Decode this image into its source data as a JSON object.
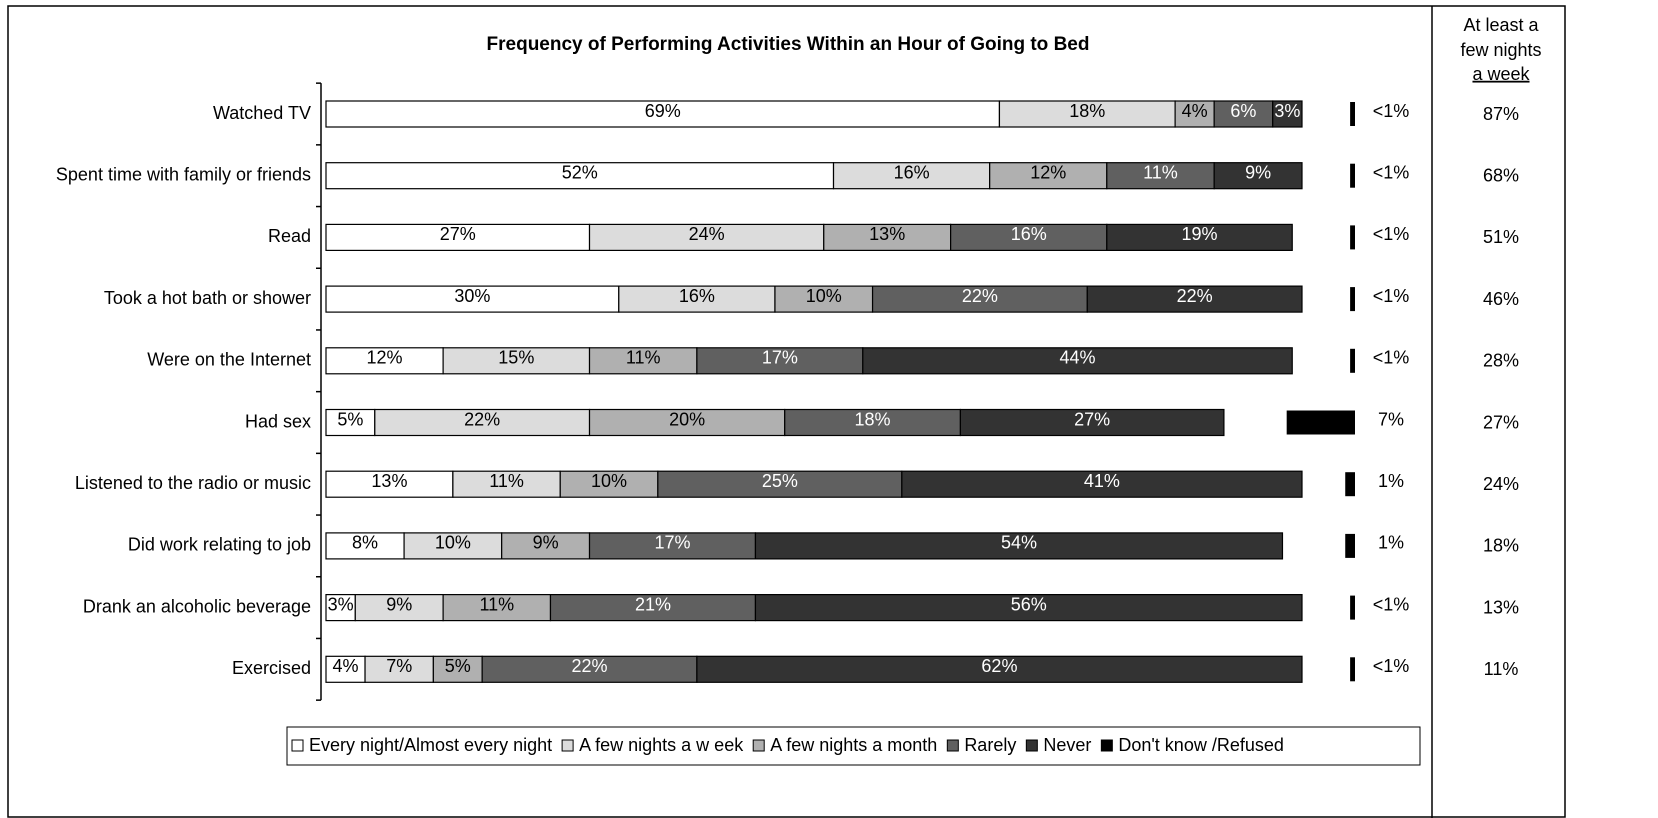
{
  "chart_data": {
    "type": "stacked-bar-horizontal",
    "title": "Frequency of Performing Activities Within an Hour of Going to Bed",
    "categories": [
      "Watched TV",
      "Spent time with family or friends",
      "Read",
      "Took a hot bath or shower",
      "Were on the Internet",
      "Had sex",
      "Listened to the radio or music",
      "Did work relating to job",
      "Drank an alcoholic beverage",
      "Exercised"
    ],
    "xlim": [
      0,
      100
    ],
    "series": [
      {
        "name": "Every night/Almost every night",
        "color": "#ffffff",
        "values": [
          69,
          52,
          27,
          30,
          12,
          5,
          13,
          8,
          3,
          4
        ],
        "value_labels": [
          "69%",
          "52%",
          "27%",
          "30%",
          "12%",
          "5%",
          "13%",
          "8%",
          "3%",
          "4%"
        ]
      },
      {
        "name": "A few  nights a w eek",
        "color": "#dcdcdc",
        "values": [
          18,
          16,
          24,
          16,
          15,
          22,
          11,
          10,
          9,
          7
        ],
        "value_labels": [
          "18%",
          "16%",
          "24%",
          "16%",
          "15%",
          "22%",
          "11%",
          "10%",
          "9%",
          "7%"
        ]
      },
      {
        "name": "A few  nights a month",
        "color": "#b0b0b0",
        "values": [
          4,
          12,
          13,
          10,
          11,
          20,
          10,
          9,
          11,
          5
        ],
        "value_labels": [
          "4%",
          "12%",
          "13%",
          "10%",
          "11%",
          "20%",
          "10%",
          "9%",
          "11%",
          "5%"
        ]
      },
      {
        "name": "Rarely",
        "color": "#606060",
        "values": [
          6,
          11,
          16,
          22,
          17,
          18,
          25,
          17,
          21,
          22
        ],
        "value_labels": [
          "6%",
          "11%",
          "16%",
          "22%",
          "17%",
          "18%",
          "25%",
          "17%",
          "21%",
          "22%"
        ]
      },
      {
        "name": "Never",
        "color": "#333333",
        "values": [
          3,
          9,
          19,
          22,
          44,
          27,
          41,
          54,
          56,
          62
        ],
        "value_labels": [
          "3%",
          "9%",
          "19%",
          "22%",
          "44%",
          "27%",
          "41%",
          "54%",
          "56%",
          "62%"
        ]
      },
      {
        "name": "Don't know /Refused",
        "color": "#000000",
        "values": [
          0.5,
          0.5,
          0.5,
          0.5,
          0.5,
          7,
          1,
          1,
          0.5,
          0.5
        ],
        "value_labels": [
          "<1%",
          "<1%",
          "<1%",
          "<1%",
          "<1%",
          "7%",
          "1%",
          "1%",
          "<1%",
          "<1%"
        ]
      }
    ],
    "summary": {
      "header_lines": [
        "At least a",
        "few nights",
        "a week"
      ],
      "values": [
        87,
        68,
        51,
        46,
        28,
        27,
        24,
        18,
        13,
        11
      ],
      "value_labels": [
        "87%",
        "68%",
        "51%",
        "46%",
        "28%",
        "27%",
        "24%",
        "18%",
        "13%",
        "11%"
      ]
    }
  }
}
